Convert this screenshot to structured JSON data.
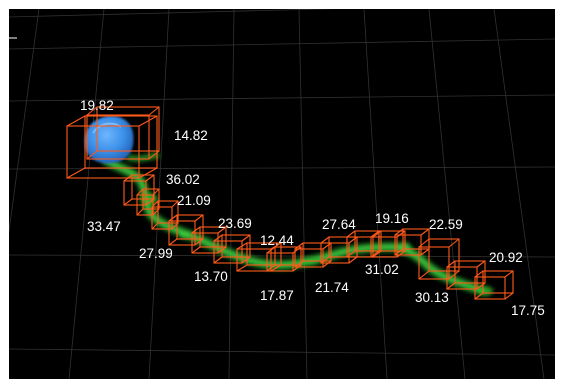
{
  "viewer": {
    "background_color": "#000000",
    "grid_color": "#3a3a3a",
    "box_color": "#ff5a1a",
    "cell_body_color": "#3b8fe8",
    "neurite_signal_color": "#2fbf2f"
  },
  "measurements": [
    {
      "label": "19.82"
    },
    {
      "label": "14.82"
    },
    {
      "label": "36.02"
    },
    {
      "label": "21.09"
    },
    {
      "label": "33.47"
    },
    {
      "label": "27.99"
    },
    {
      "label": "23.69"
    },
    {
      "label": "13.70"
    },
    {
      "label": "12.44"
    },
    {
      "label": "17.87"
    },
    {
      "label": "27.64"
    },
    {
      "label": "21.74"
    },
    {
      "label": "19.16"
    },
    {
      "label": "31.02"
    },
    {
      "label": "22.59"
    },
    {
      "label": "30.13"
    },
    {
      "label": "20.92"
    },
    {
      "label": "17.75"
    }
  ]
}
